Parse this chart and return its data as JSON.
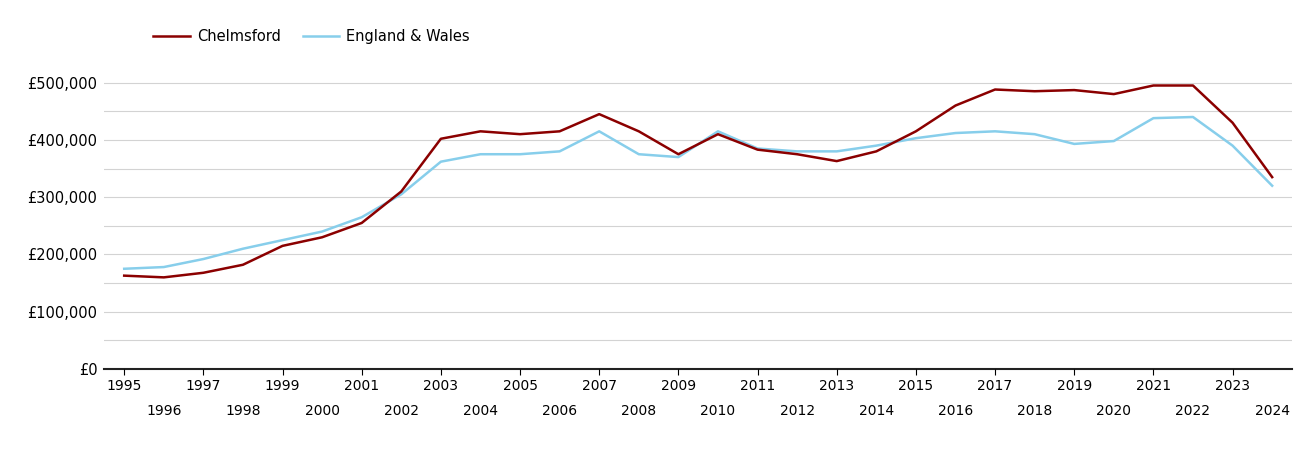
{
  "chelmsford_years": [
    1995,
    1996,
    1997,
    1998,
    1999,
    2000,
    2001,
    2002,
    2003,
    2004,
    2005,
    2006,
    2007,
    2008,
    2009,
    2010,
    2011,
    2012,
    2013,
    2014,
    2015,
    2016,
    2017,
    2018,
    2019,
    2020,
    2021,
    2022,
    2023,
    2024
  ],
  "chelmsford_values": [
    163000,
    160000,
    168000,
    182000,
    215000,
    230000,
    255000,
    310000,
    402000,
    415000,
    410000,
    415000,
    445000,
    415000,
    375000,
    410000,
    383000,
    375000,
    363000,
    380000,
    415000,
    460000,
    488000,
    485000,
    487000,
    480000,
    495000,
    495000,
    430000,
    335000
  ],
  "england_wales_years": [
    1995,
    1996,
    1997,
    1998,
    1999,
    2000,
    2001,
    2002,
    2003,
    2004,
    2005,
    2006,
    2007,
    2008,
    2009,
    2010,
    2011,
    2012,
    2013,
    2014,
    2015,
    2016,
    2017,
    2018,
    2019,
    2020,
    2021,
    2022,
    2023,
    2024
  ],
  "england_wales_values": [
    175000,
    178000,
    192000,
    210000,
    225000,
    240000,
    265000,
    305000,
    362000,
    375000,
    375000,
    380000,
    415000,
    375000,
    370000,
    415000,
    385000,
    380000,
    380000,
    390000,
    403000,
    412000,
    415000,
    410000,
    393000,
    398000,
    438000,
    440000,
    390000,
    320000
  ],
  "chelmsford_color": "#8B0000",
  "england_wales_color": "#87CEEB",
  "background_color": "#ffffff",
  "grid_color": "#d3d3d3",
  "ylim": [
    0,
    550000
  ],
  "yticks_major": [
    0,
    100000,
    200000,
    300000,
    400000,
    500000
  ],
  "yticks_minor": [
    50000,
    150000,
    250000,
    350000,
    450000
  ],
  "ytick_labels": [
    "£0",
    "£100,000",
    "£200,000",
    "£300,000",
    "£400,000",
    "£500,000"
  ],
  "xticks_row1": [
    1995,
    1997,
    1999,
    2001,
    2003,
    2005,
    2007,
    2009,
    2011,
    2013,
    2015,
    2017,
    2019,
    2021,
    2023
  ],
  "xticks_row2": [
    1996,
    1998,
    2000,
    2002,
    2004,
    2006,
    2008,
    2010,
    2012,
    2014,
    2016,
    2018,
    2020,
    2022,
    2024
  ],
  "legend_labels": [
    "Chelmsford",
    "England & Wales"
  ],
  "line_width": 1.8,
  "font_size": 10.5,
  "xlim": [
    1994.5,
    2024.5
  ]
}
